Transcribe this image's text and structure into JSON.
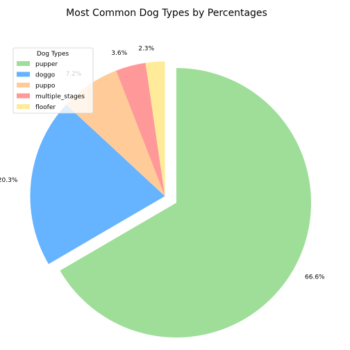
{
  "chart_data": {
    "type": "pie",
    "title": "Most Common Dog Types by Percentages",
    "categories": [
      "pupper",
      "doggo",
      "puppo",
      "multiple_stages",
      "floofer"
    ],
    "values": [
      66.6,
      20.3,
      7.2,
      3.6,
      2.3
    ],
    "value_labels": [
      "66.6%",
      "20.3%",
      "7.2%",
      "3.6%",
      "2.3%"
    ],
    "colors": [
      "#9ede98",
      "#66b3ff",
      "#ffcc99",
      "#ff9999",
      "#ffeb99"
    ],
    "exploded": [
      "pupper"
    ],
    "start_angle_deg": 90,
    "direction": "clockwise",
    "legend": {
      "title": "Dog Types",
      "placement": "top-left",
      "entries": [
        "pupper",
        "doggo",
        "puppo",
        "multiple_stages",
        "floofer"
      ]
    }
  }
}
